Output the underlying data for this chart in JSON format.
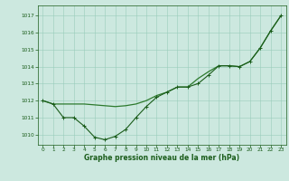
{
  "title": "Graphe pression niveau de la mer (hPa)",
  "background_color": "#cce8df",
  "grid_color": "#99ccbb",
  "line_color_main": "#1a5c1a",
  "line_color_smooth": "#2d7a2d",
  "xlim": [
    -0.5,
    23.5
  ],
  "ylim": [
    1009.4,
    1017.6
  ],
  "yticks": [
    1010,
    1011,
    1012,
    1013,
    1014,
    1015,
    1016,
    1017
  ],
  "xticks": [
    0,
    1,
    2,
    3,
    4,
    5,
    6,
    7,
    8,
    9,
    10,
    11,
    12,
    13,
    14,
    15,
    16,
    17,
    18,
    19,
    20,
    21,
    22,
    23
  ],
  "series_marker_x": [
    0,
    1,
    2,
    3,
    4,
    5,
    6,
    7,
    8,
    9,
    10,
    11,
    12,
    13,
    14,
    15,
    16,
    17,
    18,
    19,
    20,
    21,
    22,
    23
  ],
  "series_marker_y": [
    1012.0,
    1011.8,
    1011.0,
    1011.0,
    1010.5,
    1009.85,
    1009.7,
    1009.9,
    1010.3,
    1011.0,
    1011.65,
    1012.2,
    1012.5,
    1012.8,
    1012.8,
    1013.0,
    1013.5,
    1014.05,
    1014.05,
    1014.0,
    1014.3,
    1015.1,
    1016.1,
    1017.0
  ],
  "series_smooth_x": [
    0,
    1,
    2,
    3,
    4,
    5,
    6,
    7,
    8,
    9,
    10,
    11,
    12,
    13,
    14,
    15,
    16,
    17,
    18,
    19,
    20,
    21,
    22,
    23
  ],
  "series_smooth_y": [
    1012.0,
    1011.8,
    1011.8,
    1011.8,
    1011.8,
    1011.75,
    1011.7,
    1011.65,
    1011.7,
    1011.8,
    1012.0,
    1012.3,
    1012.5,
    1012.8,
    1012.8,
    1013.3,
    1013.7,
    1014.05,
    1014.05,
    1014.0,
    1014.3,
    1015.1,
    1016.1,
    1017.0
  ],
  "label_fontsize": 5.0,
  "tick_fontsize": 4.2,
  "title_fontsize": 5.5
}
